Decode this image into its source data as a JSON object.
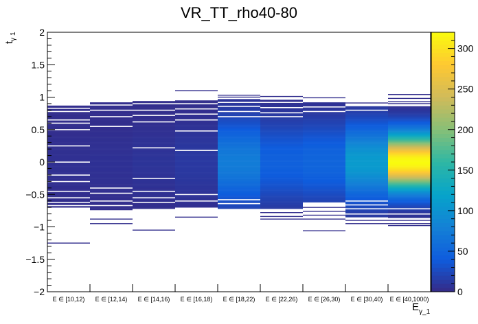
{
  "chart_data": {
    "type": "heatmap",
    "title": "VR_TT_rho40-80",
    "xlabel": {
      "base": "E",
      "sub": "γ_1"
    },
    "ylabel": {
      "base": "t",
      "sub": "γ 1"
    },
    "categories": [
      "E ∈ [10,12)",
      "E ∈ [12,14)",
      "E ∈ [14,16)",
      "E ∈ [16,18)",
      "E ∈ [18,22)",
      "E ∈ [22,26)",
      "E ∈ [26,30)",
      "E ∈ [30,40)",
      "E ∈ [40,1000)"
    ],
    "ylim": [
      -2,
      2
    ],
    "yticks": [
      "−2",
      "−1.5",
      "−1",
      "−0.5",
      "0",
      "0.5",
      "1",
      "1.5",
      "2"
    ],
    "ytick_values": [
      -2,
      -1.5,
      -1,
      -0.5,
      0,
      0.5,
      1,
      1.5,
      2
    ],
    "zlim": [
      0,
      320
    ],
    "zticks": [
      "0",
      "50",
      "100",
      "150",
      "200",
      "250",
      "300"
    ],
    "ztick_values": [
      0,
      50,
      100,
      150,
      200,
      250,
      300
    ],
    "colormap": [
      "#352a87",
      "#0f5cdd",
      "#1481d6",
      "#06a4ca",
      "#2eb7a4",
      "#87bf77",
      "#d1bb59",
      "#fec832",
      "#f9fb0e"
    ],
    "bin_width": 0.01,
    "bins": [
      {
        "ymin": -0.7,
        "ymax": 0.87,
        "gaps": [
          0.83,
          0.78,
          0.65,
          0.6,
          0.5,
          0.25,
          0.0,
          -0.2,
          -0.3,
          -0.45,
          -0.55,
          -0.62,
          -0.67
        ],
        "extras": [
          -1.25
        ],
        "peak": 5,
        "sigma": 0.5
      },
      {
        "ymin": -0.74,
        "ymax": 0.92,
        "gaps": [
          0.88,
          0.8,
          0.7,
          0.55,
          -0.4,
          -0.48,
          -0.6,
          -0.67
        ],
        "extras": [
          -0.88,
          -0.95
        ],
        "peak": 6,
        "sigma": 0.5
      },
      {
        "ymin": -0.72,
        "ymax": 0.94,
        "gaps": [
          0.9,
          0.8,
          0.72,
          0.62,
          0.22,
          -0.25,
          -0.45,
          -0.55,
          -0.62
        ],
        "extras": [
          -1.05
        ],
        "peak": 8,
        "sigma": 0.5
      },
      {
        "ymin": -0.7,
        "ymax": 0.95,
        "gaps": [
          0.9,
          0.82,
          0.74,
          0.65,
          0.48,
          0.18,
          -0.5,
          -0.6
        ],
        "extras": [
          1.1,
          -0.85
        ],
        "peak": 12,
        "sigma": 0.5
      },
      {
        "ymin": -0.72,
        "ymax": 0.97,
        "gaps": [
          0.92,
          0.86,
          0.78,
          0.7,
          -0.58,
          -0.64
        ],
        "extras": [
          1.03,
          1.0
        ],
        "peak": 75,
        "sigma": 0.45
      },
      {
        "ymin": -0.72,
        "ymax": 0.96,
        "gaps": [
          0.92,
          0.84,
          0.76,
          0.7
        ],
        "extras": [
          1.01,
          -0.78,
          -0.84,
          -0.88
        ],
        "peak": 45,
        "sigma": 0.45
      },
      {
        "ymin": -0.62,
        "ymax": 0.92,
        "gaps": [
          0.85,
          0.78
        ],
        "extras": [
          0.99,
          -0.7,
          -0.76,
          -0.82,
          -0.88,
          -1.06
        ],
        "peak": 50,
        "sigma": 0.45
      },
      {
        "ymin": -0.85,
        "ymax": 0.86,
        "gaps": [
          0.8,
          -0.6,
          -0.66,
          -0.72,
          -0.8
        ],
        "extras": [
          0.91,
          -0.9,
          -0.95
        ],
        "peak": 110,
        "sigma": 0.4
      },
      {
        "ymin": -0.86,
        "ymax": 0.86,
        "gaps": [
          -0.72,
          -0.8
        ],
        "extras": [
          1.04,
          0.98,
          0.93,
          0.9,
          -0.9,
          -0.95,
          -0.98
        ],
        "peak": 320,
        "sigma": 0.3
      }
    ]
  }
}
